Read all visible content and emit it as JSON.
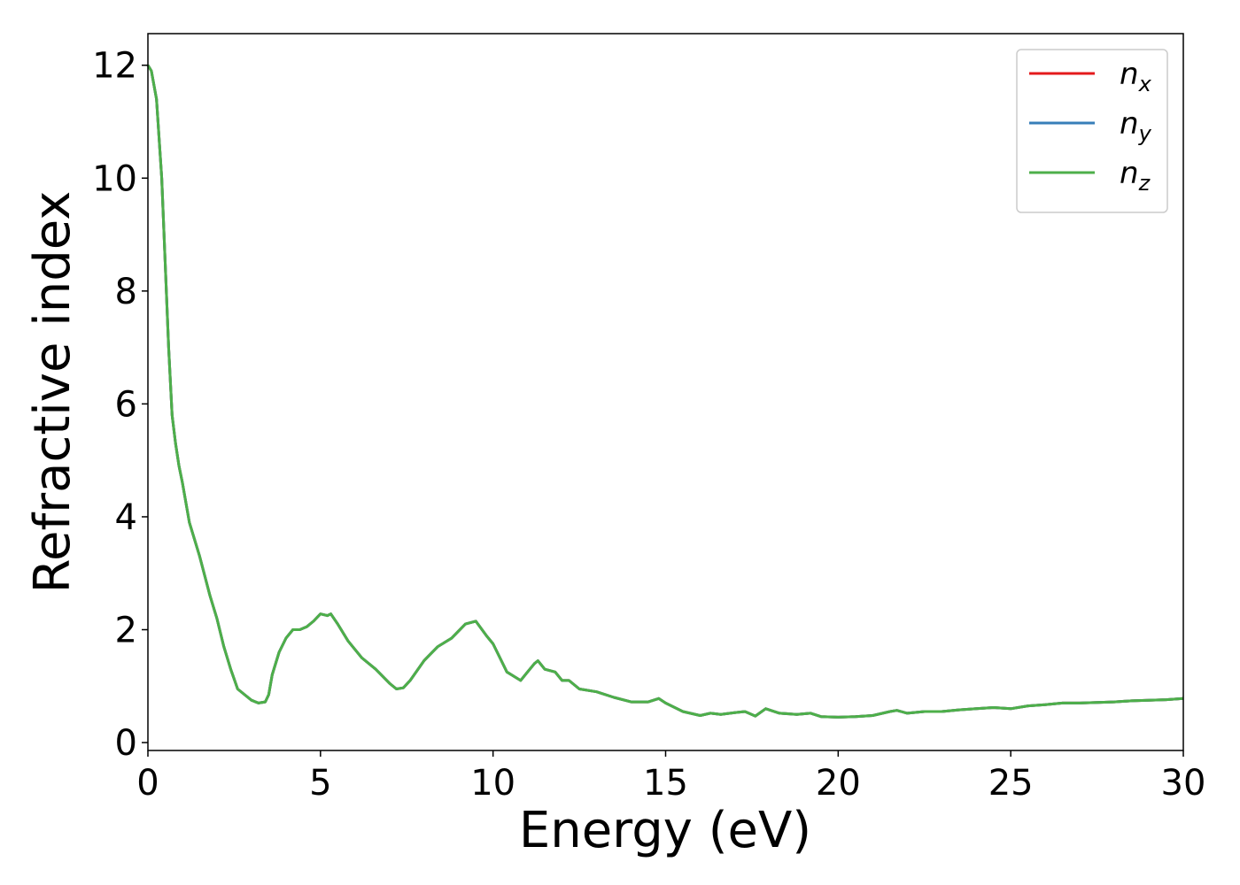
{
  "chart_data": {
    "type": "line",
    "xlabel": "Energy (eV)",
    "ylabel": "Refractive index",
    "xlim": [
      0,
      30
    ],
    "xticks": [
      0,
      5,
      10,
      15,
      20,
      25,
      30
    ],
    "ylim": [
      -0.14,
      12.56
    ],
    "yticks": [
      0,
      2,
      4,
      6,
      8,
      10,
      12
    ],
    "legend": "upper right",
    "x": [
      0,
      0.1,
      0.25,
      0.4,
      0.5,
      0.6,
      0.7,
      0.8,
      0.9,
      1.0,
      1.2,
      1.5,
      1.8,
      2.0,
      2.2,
      2.4,
      2.6,
      2.8,
      3.0,
      3.2,
      3.4,
      3.5,
      3.6,
      3.8,
      4.0,
      4.2,
      4.4,
      4.6,
      4.8,
      5.0,
      5.2,
      5.3,
      5.5,
      5.8,
      6.2,
      6.6,
      7.0,
      7.2,
      7.4,
      7.6,
      8.0,
      8.4,
      8.8,
      9.2,
      9.5,
      9.8,
      10.0,
      10.2,
      10.4,
      10.8,
      11.0,
      11.2,
      11.3,
      11.5,
      11.8,
      12.0,
      12.2,
      12.5,
      13.0,
      13.5,
      14.0,
      14.5,
      14.8,
      15.0,
      15.5,
      16.0,
      16.3,
      16.6,
      17.0,
      17.3,
      17.6,
      17.9,
      18.3,
      18.8,
      19.2,
      19.5,
      20.0,
      20.5,
      21.0,
      21.5,
      21.7,
      22.0,
      22.5,
      23.0,
      23.5,
      24.0,
      24.5,
      25.0,
      25.5,
      26.0,
      26.5,
      27.0,
      27.5,
      28.0,
      28.5,
      29.0,
      29.5,
      30.0
    ],
    "series": [
      {
        "name": "nx",
        "color": "#e41a1c",
        "values": [
          12.0,
          11.9,
          11.4,
          10,
          8.5,
          7,
          5.8,
          5.3,
          4.9,
          4.6,
          3.9,
          3.3,
          2.6,
          2.2,
          1.7,
          1.3,
          0.95,
          0.85,
          0.75,
          0.7,
          0.72,
          0.85,
          1.2,
          1.6,
          1.85,
          2.0,
          2.0,
          2.05,
          2.15,
          2.28,
          2.25,
          2.28,
          2.1,
          1.8,
          1.5,
          1.3,
          1.05,
          0.95,
          0.97,
          1.1,
          1.45,
          1.7,
          1.85,
          2.1,
          2.15,
          1.9,
          1.75,
          1.5,
          1.25,
          1.1,
          1.25,
          1.4,
          1.45,
          1.3,
          1.25,
          1.1,
          1.1,
          0.95,
          0.9,
          0.8,
          0.72,
          0.72,
          0.78,
          0.7,
          0.55,
          0.48,
          0.52,
          0.5,
          0.53,
          0.55,
          0.47,
          0.6,
          0.52,
          0.5,
          0.52,
          0.46,
          0.45,
          0.46,
          0.48,
          0.55,
          0.57,
          0.52,
          0.55,
          0.55,
          0.58,
          0.6,
          0.62,
          0.6,
          0.65,
          0.67,
          0.7,
          0.7,
          0.71,
          0.72,
          0.74,
          0.75,
          0.76,
          0.78
        ]
      },
      {
        "name": "ny",
        "color": "#377eb8",
        "values": [
          12.0,
          11.9,
          11.4,
          10,
          8.5,
          7,
          5.8,
          5.3,
          4.9,
          4.6,
          3.9,
          3.3,
          2.6,
          2.2,
          1.7,
          1.3,
          0.95,
          0.85,
          0.75,
          0.7,
          0.72,
          0.85,
          1.2,
          1.6,
          1.85,
          2.0,
          2.0,
          2.05,
          2.15,
          2.28,
          2.25,
          2.28,
          2.1,
          1.8,
          1.5,
          1.3,
          1.05,
          0.95,
          0.97,
          1.1,
          1.45,
          1.7,
          1.85,
          2.1,
          2.15,
          1.9,
          1.75,
          1.5,
          1.25,
          1.1,
          1.25,
          1.4,
          1.45,
          1.3,
          1.25,
          1.1,
          1.1,
          0.95,
          0.9,
          0.8,
          0.72,
          0.72,
          0.78,
          0.7,
          0.55,
          0.48,
          0.52,
          0.5,
          0.53,
          0.55,
          0.47,
          0.6,
          0.52,
          0.5,
          0.52,
          0.46,
          0.45,
          0.46,
          0.48,
          0.55,
          0.57,
          0.52,
          0.55,
          0.55,
          0.58,
          0.6,
          0.62,
          0.6,
          0.65,
          0.67,
          0.7,
          0.7,
          0.71,
          0.72,
          0.74,
          0.75,
          0.76,
          0.78
        ]
      },
      {
        "name": "nz",
        "color": "#4daf4a",
        "values": [
          12.0,
          11.9,
          11.4,
          10,
          8.5,
          7,
          5.8,
          5.3,
          4.9,
          4.6,
          3.9,
          3.3,
          2.6,
          2.2,
          1.7,
          1.3,
          0.95,
          0.85,
          0.75,
          0.7,
          0.72,
          0.85,
          1.2,
          1.6,
          1.85,
          2.0,
          2.0,
          2.05,
          2.15,
          2.28,
          2.25,
          2.28,
          2.1,
          1.8,
          1.5,
          1.3,
          1.05,
          0.95,
          0.97,
          1.1,
          1.45,
          1.7,
          1.85,
          2.1,
          2.15,
          1.9,
          1.75,
          1.5,
          1.25,
          1.1,
          1.25,
          1.4,
          1.45,
          1.3,
          1.25,
          1.1,
          1.1,
          0.95,
          0.9,
          0.8,
          0.72,
          0.72,
          0.78,
          0.7,
          0.55,
          0.48,
          0.52,
          0.5,
          0.53,
          0.55,
          0.47,
          0.6,
          0.52,
          0.5,
          0.52,
          0.46,
          0.45,
          0.46,
          0.48,
          0.55,
          0.57,
          0.52,
          0.55,
          0.55,
          0.58,
          0.6,
          0.62,
          0.6,
          0.65,
          0.67,
          0.7,
          0.7,
          0.71,
          0.72,
          0.74,
          0.75,
          0.76,
          0.78
        ]
      }
    ]
  }
}
